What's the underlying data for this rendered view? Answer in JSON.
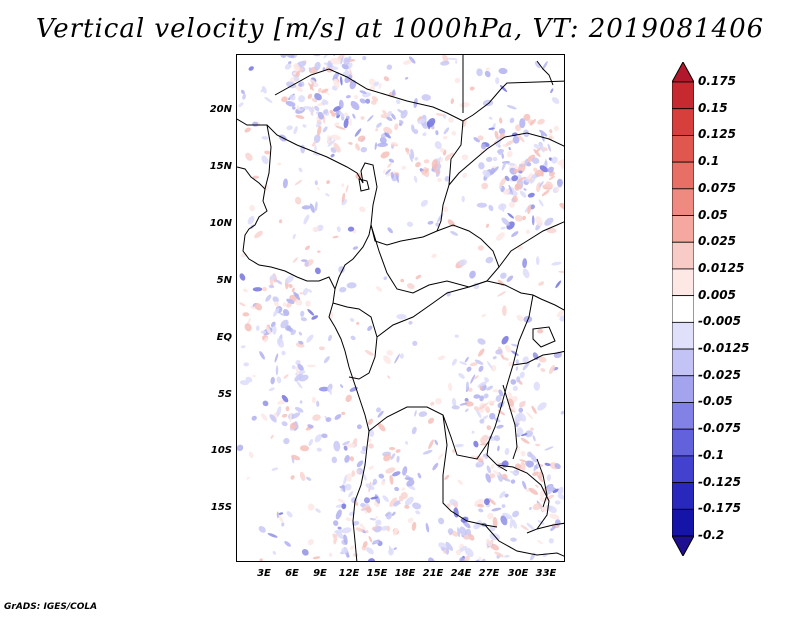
{
  "title": "Vertical velocity [m/s] at 1000hPa, VT: 2019081406",
  "credit": "GrADS: IGES/COLA",
  "map": {
    "lat_labels": [
      "20N",
      "15N",
      "10N",
      "5N",
      "EQ",
      "5S",
      "10S",
      "15S"
    ],
    "lon_labels": [
      "3E",
      "6E",
      "9E",
      "12E",
      "15E",
      "18E",
      "21E",
      "24E",
      "27E",
      "30E",
      "33E"
    ],
    "field": "Vertical velocity",
    "level": "1000hPa",
    "valid_time": "2019081406"
  },
  "colorbar": {
    "labels": [
      "0.175",
      "0.15",
      "0.125",
      "0.1",
      "0.075",
      "0.05",
      "0.025",
      "0.0125",
      "0.005",
      "-0.005",
      "-0.0125",
      "-0.025",
      "-0.05",
      "-0.075",
      "-0.1",
      "-0.125",
      "-0.175",
      "-0.2"
    ],
    "colors": [
      "#b2182b",
      "#c62a30",
      "#d63f3c",
      "#e0574f",
      "#e86f65",
      "#ef8a80",
      "#f4a8a0",
      "#f9cbc6",
      "#fde8e6",
      "#ffffff",
      "#e0e0fb",
      "#c3c3f5",
      "#a3a3ee",
      "#8282e6",
      "#6262dc",
      "#4242cf",
      "#2828bd",
      "#1414a8",
      "#1e0f8f"
    ]
  }
}
